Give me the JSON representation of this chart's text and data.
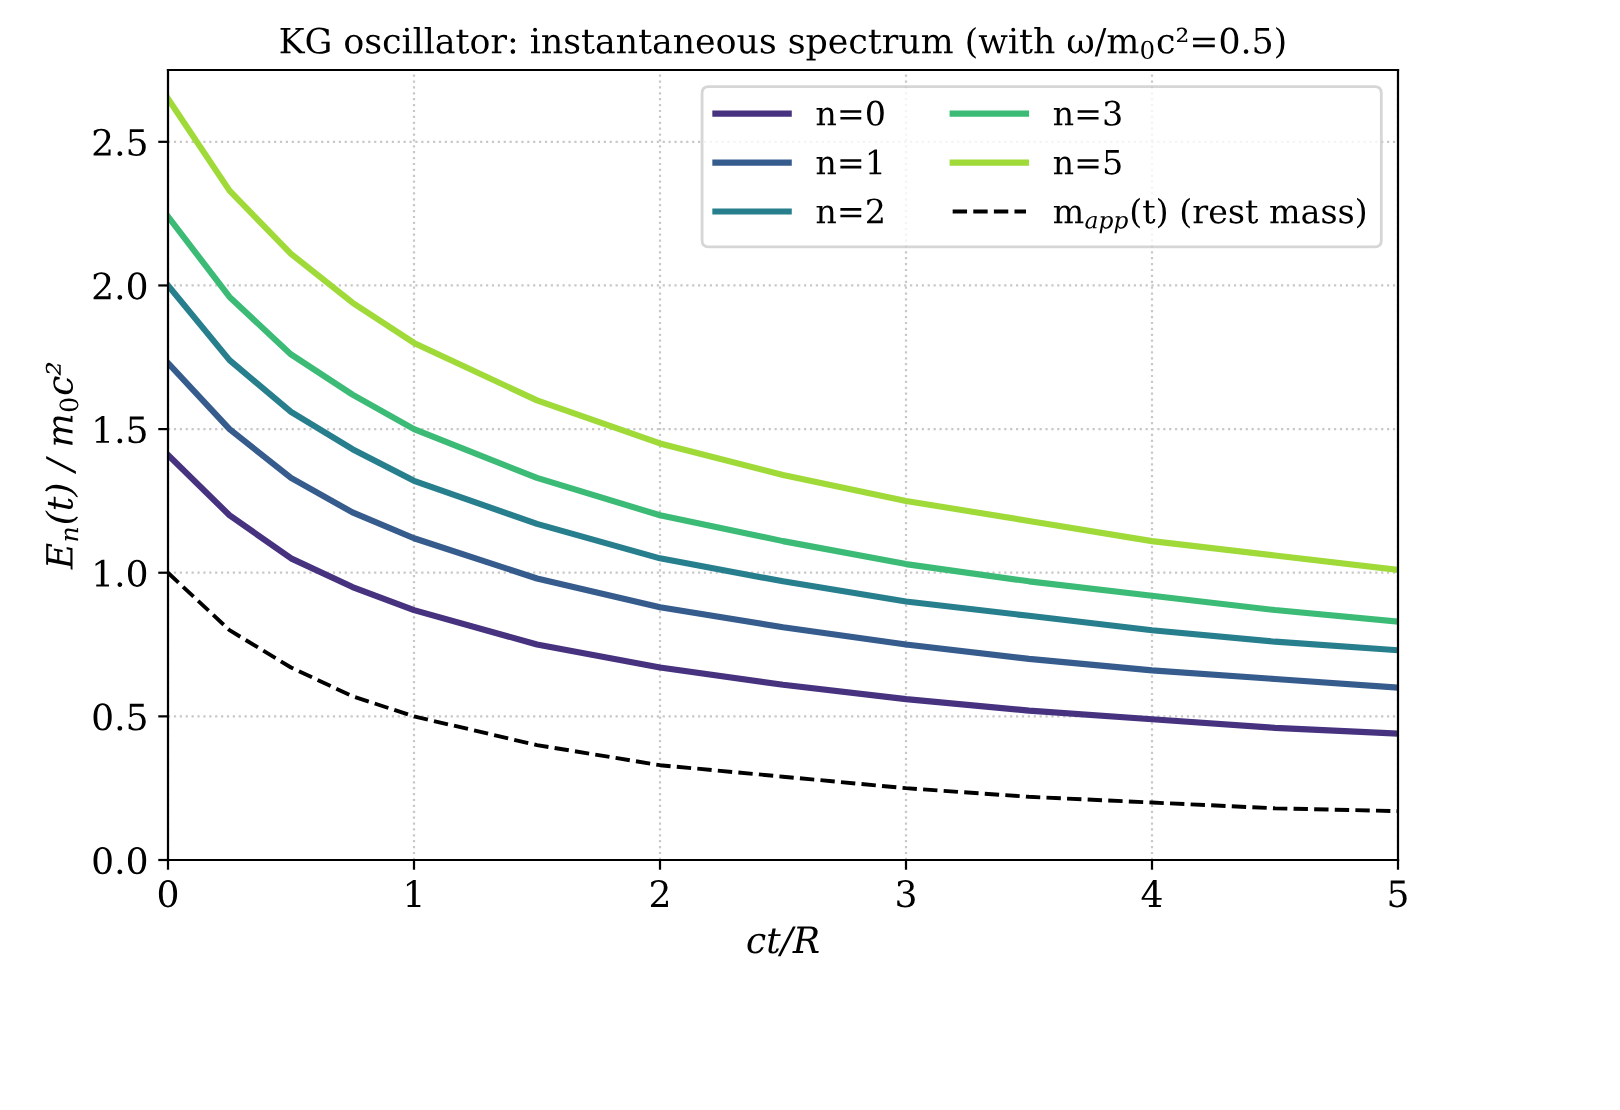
{
  "chart_data": {
    "type": "line",
    "title": "KG oscillator: instantaneous spectrum (with ω/m$_{0}$c²=0.5)",
    "xlabel": "ct/R",
    "ylabel": "E$_{n}$(t) / m$_{0}$c²",
    "x": [
      0,
      0.25,
      0.5,
      0.75,
      1,
      1.5,
      2,
      2.5,
      3,
      3.5,
      4,
      4.5,
      5
    ],
    "series": [
      {
        "name": "n=0",
        "color": "#46327e",
        "values": [
          1.41,
          1.2,
          1.05,
          0.95,
          0.87,
          0.75,
          0.67,
          0.61,
          0.56,
          0.52,
          0.49,
          0.46,
          0.44
        ]
      },
      {
        "name": "n=1",
        "color": "#365c8d",
        "values": [
          1.73,
          1.5,
          1.33,
          1.21,
          1.12,
          0.98,
          0.88,
          0.81,
          0.75,
          0.7,
          0.66,
          0.63,
          0.6
        ]
      },
      {
        "name": "n=2",
        "color": "#277f8e",
        "values": [
          2.0,
          1.74,
          1.56,
          1.43,
          1.32,
          1.17,
          1.05,
          0.97,
          0.9,
          0.85,
          0.8,
          0.76,
          0.73
        ]
      },
      {
        "name": "n=3",
        "color": "#3bbb75",
        "values": [
          2.24,
          1.96,
          1.76,
          1.62,
          1.5,
          1.33,
          1.2,
          1.11,
          1.03,
          0.97,
          0.92,
          0.87,
          0.83
        ]
      },
      {
        "name": "n=5",
        "color": "#a0da39",
        "values": [
          2.65,
          2.33,
          2.11,
          1.94,
          1.8,
          1.6,
          1.45,
          1.34,
          1.25,
          1.18,
          1.11,
          1.06,
          1.01
        ]
      },
      {
        "name": "m$_{app}$(t) (rest mass)",
        "color": "#000000",
        "line_style": "dashed",
        "values": [
          1.0,
          0.8,
          0.67,
          0.57,
          0.5,
          0.4,
          0.33,
          0.29,
          0.25,
          0.22,
          0.2,
          0.18,
          0.17
        ]
      }
    ],
    "xlim": [
      0,
      5
    ],
    "xticks": [
      0,
      1,
      2,
      3,
      4,
      5
    ],
    "ylim": [
      0,
      2.75
    ],
    "yticks": [
      {
        "value": 0,
        "label": "0.0"
      },
      0.5,
      {
        "value": 1,
        "label": "1.0"
      },
      1.5,
      {
        "value": 2,
        "label": "2.0"
      },
      2.5
    ],
    "grid": true,
    "legend": "top right",
    "line_style": "solid",
    "marker": "none"
  }
}
